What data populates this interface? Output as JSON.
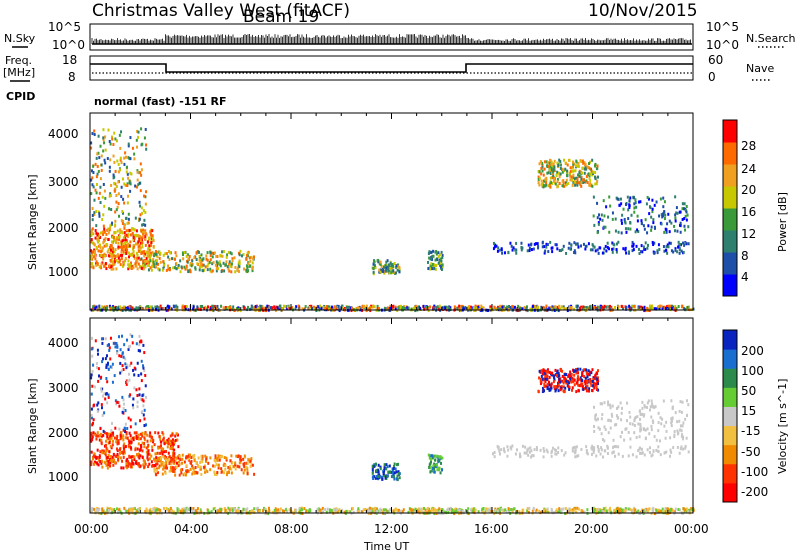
{
  "header": {
    "title": "Christmas Valley West (fitACF)",
    "beam": "Beam 19",
    "date": "10/Nov/2015"
  },
  "side_labels": {
    "nsky": "N.Sky",
    "freq_line1": "Freq.",
    "freq_line2": "[MHz]",
    "cpid": "CPID",
    "nsearch": "N.Search",
    "nave": "Nave"
  },
  "cpid_text": "normal (fast) -151 RF",
  "noise_panel": {
    "left_ticks": [
      "10^5",
      "10^0"
    ],
    "right_ticks": [
      "10^5",
      "10^0"
    ]
  },
  "freq_panel": {
    "left_ticks": [
      "18",
      "8"
    ],
    "right_ticks": [
      "60",
      "0"
    ]
  },
  "chart_data": [
    {
      "type": "heatmap",
      "name": "Power",
      "ylabel": "Slant Range [km]",
      "yticks": [
        "4000",
        "3000",
        "2000",
        "1000"
      ],
      "ylim": [
        180,
        4500
      ],
      "colorbar_label": "Power [dB]",
      "colorbar_ticks": [
        "28",
        "24",
        "20",
        "16",
        "12",
        "8",
        "4"
      ],
      "colors": [
        "#0000ff",
        "#1e4fa8",
        "#2f7f6e",
        "#3a9a3a",
        "#c8c800",
        "#f0a020",
        "#ff6a00",
        "#ff0000"
      ]
    },
    {
      "type": "heatmap",
      "name": "Velocity",
      "ylabel": "Slant Range [km]",
      "yticks": [
        "4000",
        "3000",
        "2000",
        "1000"
      ],
      "ylim": [
        180,
        4500
      ],
      "colorbar_label": "Velocity [m s^-1]",
      "colorbar_ticks": [
        "200",
        "100",
        "50",
        "15",
        "-15",
        "-50",
        "-100",
        "-200"
      ],
      "colors": [
        "#0a24c0",
        "#1a6ed0",
        "#2c8a4a",
        "#66cc33",
        "#c8c8c8",
        "#f2c040",
        "#f08a00",
        "#ff3300",
        "#ff0000"
      ]
    }
  ],
  "xaxis": {
    "label": "Time UT",
    "ticks": [
      "00:00",
      "04:00",
      "08:00",
      "12:00",
      "16:00",
      "20:00",
      "00:00"
    ]
  }
}
